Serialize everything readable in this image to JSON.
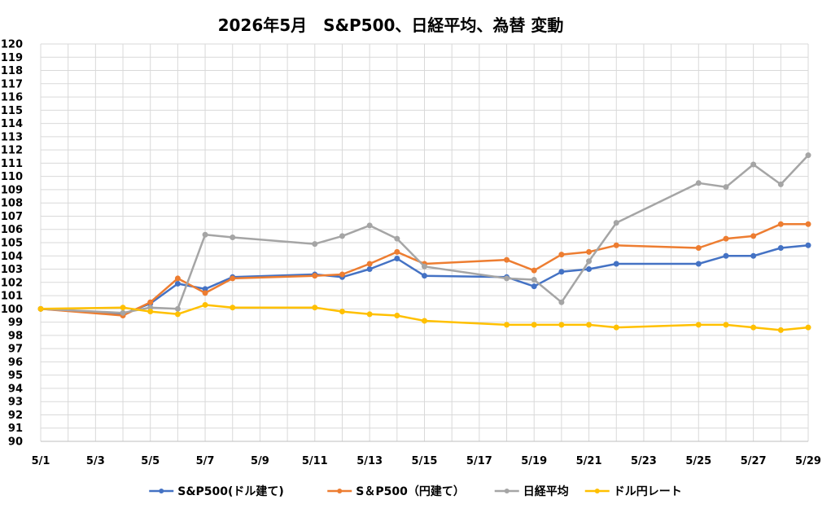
{
  "chart_data": {
    "type": "line",
    "title": "2026年5月　S&P500、日経平均、為替 変動",
    "xlabel": "",
    "ylabel": "",
    "ylim": [
      90,
      120
    ],
    "yticks": [
      90,
      91,
      92,
      93,
      94,
      95,
      96,
      97,
      98,
      99,
      100,
      101,
      102,
      103,
      104,
      105,
      106,
      107,
      108,
      109,
      110,
      111,
      112,
      113,
      114,
      115,
      116,
      117,
      118,
      119,
      120
    ],
    "x_tick_labels": [
      "5/1",
      "5/3",
      "5/5",
      "5/7",
      "5/9",
      "5/11",
      "5/13",
      "5/15",
      "5/17",
      "5/19",
      "5/21",
      "5/23",
      "5/25",
      "5/27",
      "5/29"
    ],
    "x_range_days": [
      1,
      29
    ],
    "grid": true,
    "legend_position": "bottom",
    "series": [
      {
        "name": "S&P500(ドル建て)",
        "color": "#4472C4",
        "points": [
          [
            "5/1",
            100.0
          ],
          [
            "5/4",
            99.6
          ],
          [
            "5/5",
            100.4
          ],
          [
            "5/6",
            101.9
          ],
          [
            "5/7",
            101.5
          ],
          [
            "5/8",
            102.4
          ],
          [
            "5/11",
            102.6
          ],
          [
            "5/12",
            102.4
          ],
          [
            "5/13",
            103.0
          ],
          [
            "5/14",
            103.8
          ],
          [
            "5/15",
            102.5
          ],
          [
            "5/18",
            102.4
          ],
          [
            "5/19",
            101.7
          ],
          [
            "5/20",
            102.8
          ],
          [
            "5/21",
            103.0
          ],
          [
            "5/22",
            103.4
          ],
          [
            "5/25",
            103.4
          ],
          [
            "5/26",
            104.0
          ],
          [
            "5/27",
            104.0
          ],
          [
            "5/28",
            104.6
          ],
          [
            "5/29",
            104.8
          ]
        ]
      },
      {
        "name": "S＆P500（円建て）",
        "color": "#ED7D31",
        "points": [
          [
            "5/1",
            100.0
          ],
          [
            "5/4",
            99.5
          ],
          [
            "5/5",
            100.5
          ],
          [
            "5/6",
            102.3
          ],
          [
            "5/7",
            101.2
          ],
          [
            "5/8",
            102.3
          ],
          [
            "5/11",
            102.5
          ],
          [
            "5/12",
            102.6
          ],
          [
            "5/13",
            103.4
          ],
          [
            "5/14",
            104.3
          ],
          [
            "5/15",
            103.4
          ],
          [
            "5/18",
            103.7
          ],
          [
            "5/19",
            102.9
          ],
          [
            "5/20",
            104.1
          ],
          [
            "5/21",
            104.3
          ],
          [
            "5/22",
            104.8
          ],
          [
            "5/25",
            104.6
          ],
          [
            "5/26",
            105.3
          ],
          [
            "5/27",
            105.5
          ],
          [
            "5/28",
            106.4
          ],
          [
            "5/29",
            106.4
          ]
        ]
      },
      {
        "name": "日経平均",
        "color": "#A5A5A5",
        "points": [
          [
            "5/1",
            100.0
          ],
          [
            "5/4",
            99.7
          ],
          [
            "5/5",
            100.1
          ],
          [
            "5/6",
            100.0
          ],
          [
            "5/7",
            105.6
          ],
          [
            "5/8",
            105.4
          ],
          [
            "5/11",
            104.9
          ],
          [
            "5/12",
            105.5
          ],
          [
            "5/13",
            106.3
          ],
          [
            "5/14",
            105.3
          ],
          [
            "5/15",
            103.2
          ],
          [
            "5/18",
            102.3
          ],
          [
            "5/19",
            102.2
          ],
          [
            "5/20",
            100.5
          ],
          [
            "5/21",
            103.6
          ],
          [
            "5/22",
            106.5
          ],
          [
            "5/25",
            109.5
          ],
          [
            "5/26",
            109.2
          ],
          [
            "5/27",
            110.9
          ],
          [
            "5/28",
            109.4
          ],
          [
            "5/29",
            111.6
          ]
        ]
      },
      {
        "name": "ドル円レート",
        "color": "#FFC000",
        "points": [
          [
            "5/1",
            100.0
          ],
          [
            "5/4",
            100.1
          ],
          [
            "5/5",
            99.8
          ],
          [
            "5/6",
            99.6
          ],
          [
            "5/7",
            100.3
          ],
          [
            "5/8",
            100.1
          ],
          [
            "5/11",
            100.1
          ],
          [
            "5/12",
            99.8
          ],
          [
            "5/13",
            99.6
          ],
          [
            "5/14",
            99.5
          ],
          [
            "5/15",
            99.1
          ],
          [
            "5/18",
            98.8
          ],
          [
            "5/19",
            98.8
          ],
          [
            "5/20",
            98.8
          ],
          [
            "5/21",
            98.8
          ],
          [
            "5/22",
            98.6
          ],
          [
            "5/25",
            98.8
          ],
          [
            "5/26",
            98.8
          ],
          [
            "5/27",
            98.6
          ],
          [
            "5/28",
            98.4
          ],
          [
            "5/29",
            98.6
          ]
        ]
      }
    ]
  }
}
